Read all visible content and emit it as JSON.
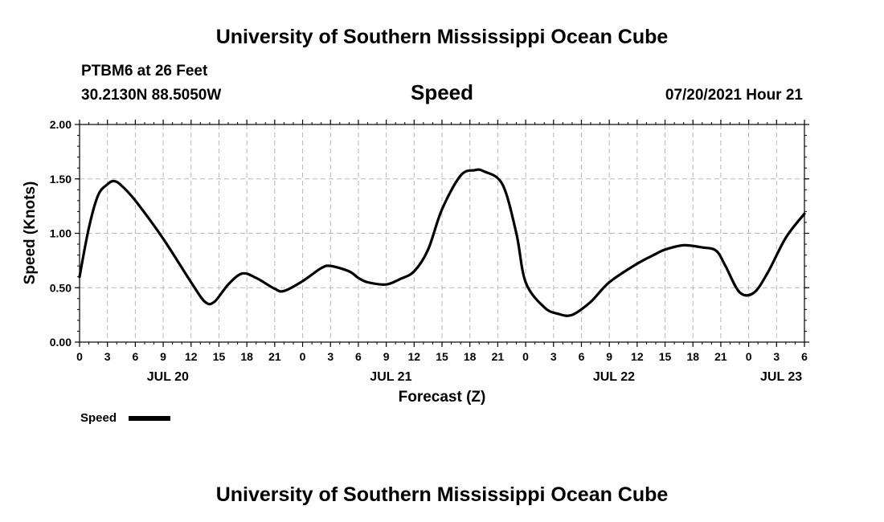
{
  "header": {
    "title_top": "University of Southern Mississippi Ocean Cube",
    "station": "PTBM6 at 26 Feet",
    "coords": "30.2130N  88.5050W",
    "variable": "Speed",
    "datetime": "07/20/2021 Hour 21"
  },
  "footer": {
    "title_bottom": "University of Southern Mississippi Ocean Cube"
  },
  "legend": {
    "label": "Speed"
  },
  "colors": {
    "line": "#000000",
    "grid": "#b8b8b8",
    "axis": "#000000"
  },
  "chart_data": {
    "type": "line",
    "title": "Speed",
    "xlabel": "Forecast (Z)",
    "ylabel": "Speed (Knots)",
    "x_unit": "hours from 00Z JUL 20",
    "xlim": [
      0,
      78
    ],
    "ylim": [
      0,
      2.0
    ],
    "y_ticks": [
      0.0,
      0.5,
      1.0,
      1.5,
      2.0
    ],
    "y_tick_labels": [
      "0.00",
      "0.50",
      "1.00",
      "1.50",
      "2.00"
    ],
    "x_ticks": [
      0,
      3,
      6,
      9,
      12,
      15,
      18,
      21,
      24,
      27,
      30,
      33,
      36,
      39,
      42,
      45,
      48,
      51,
      54,
      57,
      60,
      63,
      66,
      69,
      72,
      75,
      78
    ],
    "x_tick_labels": [
      "0",
      "3",
      "6",
      "9",
      "12",
      "15",
      "18",
      "21",
      "0",
      "3",
      "6",
      "9",
      "12",
      "15",
      "18",
      "21",
      "0",
      "3",
      "6",
      "9",
      "12",
      "15",
      "18",
      "21",
      "0",
      "3",
      "6"
    ],
    "date_labels": [
      {
        "x": 9.5,
        "label": "JUL 20"
      },
      {
        "x": 33.5,
        "label": "JUL 21"
      },
      {
        "x": 57.5,
        "label": "JUL 22"
      },
      {
        "x": 75.5,
        "label": "JUL 23"
      }
    ],
    "grid": true,
    "series": [
      {
        "name": "Speed",
        "x": [
          0,
          1,
          2,
          3,
          3.7,
          4.5,
          6,
          9,
          12,
          13.5,
          14.5,
          16,
          17.5,
          19,
          21,
          22,
          24,
          26,
          27,
          29,
          30,
          31,
          33,
          34.5,
          36,
          37.5,
          39,
          41,
          42.5,
          43.5,
          45.5,
          47,
          48,
          50,
          51.5,
          53,
          55,
          57,
          60,
          62,
          63,
          65,
          67,
          68.5,
          69.5,
          71,
          72.5,
          74,
          76,
          78
        ],
        "y": [
          0.6,
          1.05,
          1.35,
          1.45,
          1.48,
          1.44,
          1.3,
          0.95,
          0.55,
          0.37,
          0.37,
          0.53,
          0.63,
          0.59,
          0.49,
          0.47,
          0.56,
          0.68,
          0.7,
          0.65,
          0.59,
          0.55,
          0.53,
          0.58,
          0.65,
          0.85,
          1.22,
          1.53,
          1.58,
          1.57,
          1.45,
          1.0,
          0.55,
          0.32,
          0.26,
          0.25,
          0.37,
          0.55,
          0.72,
          0.81,
          0.85,
          0.89,
          0.87,
          0.84,
          0.7,
          0.46,
          0.45,
          0.63,
          0.96,
          1.18
        ]
      }
    ]
  }
}
